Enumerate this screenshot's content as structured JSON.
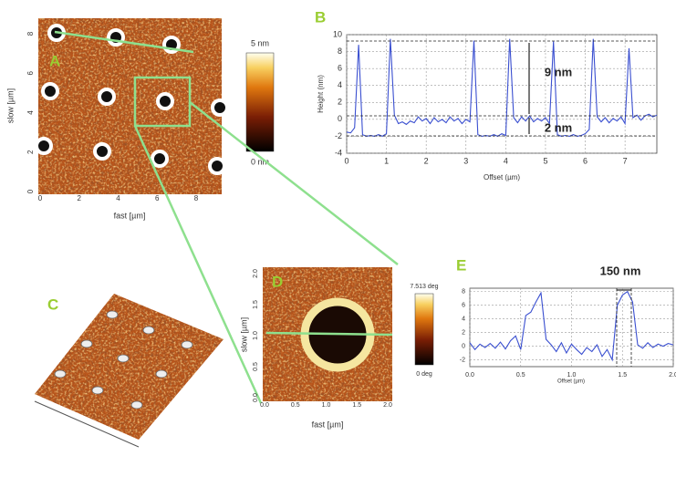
{
  "panel_a": {
    "label": "A",
    "xlabel": "fast [µm]",
    "ylabel": "slow [µm]",
    "xticks": [
      0,
      2,
      4,
      6,
      8
    ],
    "yticks": [
      0,
      2,
      4,
      6,
      8
    ],
    "colorbar_max": "5 nm",
    "colorbar_min": "0 nm"
  },
  "panel_c": {
    "label": "C"
  },
  "panel_d": {
    "label": "D",
    "xlabel": "fast [µm]",
    "ylabel": "slow [µm]",
    "xticks": [
      "0.0",
      "0.5",
      "1.0",
      "1.5",
      "2.0"
    ],
    "yticks": [
      "0.0",
      "0.5",
      "1.0",
      "1.5",
      "2.0"
    ],
    "colorbar_max": "7.513 deg",
    "colorbar_min": "0 deg"
  },
  "chart_data": [
    {
      "type": "line",
      "panel": "B",
      "xlabel": "Offset (µm)",
      "ylabel": "Height (nm)",
      "annotations": [
        "9 nm",
        "2 nm"
      ],
      "xlim": [
        0,
        7.8
      ],
      "ylim": [
        -4,
        10
      ],
      "xticks": [
        0,
        1,
        2,
        3,
        4,
        5,
        6,
        7
      ],
      "yticks": [
        -4,
        -2,
        0,
        2,
        4,
        6,
        8,
        10
      ],
      "grid": true,
      "x": [
        0.0,
        0.1,
        0.2,
        0.3,
        0.4,
        0.5,
        0.6,
        0.7,
        0.8,
        0.9,
        1.0,
        1.1,
        1.2,
        1.3,
        1.4,
        1.5,
        1.6,
        1.7,
        1.8,
        1.9,
        2.0,
        2.1,
        2.2,
        2.3,
        2.4,
        2.5,
        2.6,
        2.7,
        2.8,
        2.9,
        3.0,
        3.1,
        3.2,
        3.3,
        3.4,
        3.5,
        3.6,
        3.7,
        3.8,
        3.9,
        4.0,
        4.1,
        4.2,
        4.3,
        4.4,
        4.5,
        4.6,
        4.7,
        4.8,
        4.9,
        5.0,
        5.1,
        5.2,
        5.3,
        5.4,
        5.5,
        5.6,
        5.7,
        5.8,
        5.9,
        6.0,
        6.1,
        6.2,
        6.3,
        6.4,
        6.5,
        6.6,
        6.7,
        6.8,
        6.9,
        7.0,
        7.1,
        7.2,
        7.3,
        7.4,
        7.5,
        7.6,
        7.7,
        7.8
      ],
      "series": [
        {
          "color": "#3a4fd0",
          "values": [
            -1.5,
            -1.6,
            -1.0,
            8.8,
            -1.8,
            -2.0,
            -1.9,
            -2.0,
            -1.8,
            -2.0,
            -1.7,
            9.5,
            0.5,
            -0.5,
            -0.3,
            -0.6,
            -0.2,
            -0.4,
            0.3,
            -0.2,
            0.1,
            -0.5,
            0.2,
            -0.3,
            0.0,
            -0.4,
            0.3,
            -0.2,
            0.1,
            -0.5,
            0.0,
            -0.3,
            9.3,
            -1.8,
            -2.0,
            -1.9,
            -2.0,
            -1.8,
            -2.0,
            -1.7,
            -1.9,
            9.5,
            0.2,
            -0.4,
            0.3,
            -0.2,
            0.4,
            -0.3,
            0.1,
            -0.2,
            0.2,
            -0.5,
            9.2,
            -1.8,
            -2.0,
            -1.9,
            -2.0,
            -1.8,
            -2.0,
            -1.9,
            -1.7,
            -1.2,
            9.5,
            0.3,
            -0.3,
            0.2,
            -0.4,
            0.1,
            -0.2,
            0.3,
            -0.5,
            8.4,
            0.2,
            0.5,
            -0.1,
            0.4,
            0.6,
            0.3,
            0.5
          ]
        }
      ]
    },
    {
      "type": "line",
      "panel": "E",
      "xlabel": "Offset (µm)",
      "annotations": [
        "150 nm"
      ],
      "xlim": [
        0,
        2
      ],
      "ylim": [
        -3,
        8.5
      ],
      "xticks": [
        {
          "value": 0,
          "label": "0.0"
        },
        0.5,
        {
          "value": 1,
          "label": "1.0"
        },
        1.5,
        {
          "value": 2,
          "label": "2.0"
        }
      ],
      "yticks": [
        -2,
        0,
        2,
        4,
        6,
        8
      ],
      "grid": true,
      "x": [
        0.0,
        0.05,
        0.1,
        0.15,
        0.2,
        0.25,
        0.3,
        0.35,
        0.4,
        0.45,
        0.5,
        0.55,
        0.6,
        0.65,
        0.7,
        0.75,
        0.8,
        0.85,
        0.9,
        0.95,
        1.0,
        1.05,
        1.1,
        1.15,
        1.2,
        1.25,
        1.3,
        1.35,
        1.4,
        1.45,
        1.5,
        1.55,
        1.6,
        1.65,
        1.7,
        1.75,
        1.8,
        1.85,
        1.9,
        1.95,
        2.0
      ],
      "series": [
        {
          "color": "#3a4fd0",
          "values": [
            0.5,
            -0.5,
            0.3,
            -0.2,
            0.4,
            -0.3,
            0.6,
            -0.4,
            0.8,
            1.5,
            -0.5,
            4.5,
            5.0,
            6.5,
            7.8,
            1.0,
            0.2,
            -0.8,
            0.5,
            -1.0,
            0.3,
            -0.5,
            -1.2,
            -0.2,
            -0.8,
            0.2,
            -1.5,
            -0.5,
            -2.0,
            6.0,
            7.5,
            8.0,
            6.5,
            0.2,
            -0.3,
            0.5,
            -0.2,
            0.3,
            0.0,
            0.4,
            0.2
          ]
        }
      ]
    }
  ]
}
